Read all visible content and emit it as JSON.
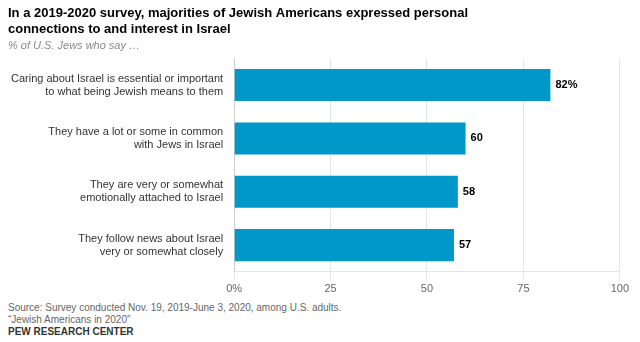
{
  "chart_data": {
    "type": "bar",
    "orientation": "horizontal",
    "title": "In a 2019-2020 survey, majorities of Jewish Americans expressed personal\nconnections to and interest in Israel",
    "subtitle": "% of U.S. Jews who say …",
    "categories": [
      "They follow news about Israel\nvery or somewhat closely",
      "They are very or somewhat\nemotionally attached to Israel",
      "They have a lot or some in common\nwith Jews in Israel",
      "Caring about Israel is essential or important\nto what being Jewish means to them"
    ],
    "values": [
      57,
      58,
      60,
      82
    ],
    "value_labels": [
      "57",
      "58",
      "60",
      "82%"
    ],
    "data_labels": true,
    "color": "#0098c8",
    "xlim": [
      0,
      100
    ],
    "xticks": [
      {
        "value": 0,
        "label": "0%"
      },
      25,
      50,
      75,
      100
    ],
    "grid": true,
    "annotations": [
      "Source: Survey conducted Nov. 19, 2019-June 3, 2020, among U.S. adults.",
      "“Jewish Americans in 2020”",
      "PEW RESEARCH CENTER"
    ]
  }
}
